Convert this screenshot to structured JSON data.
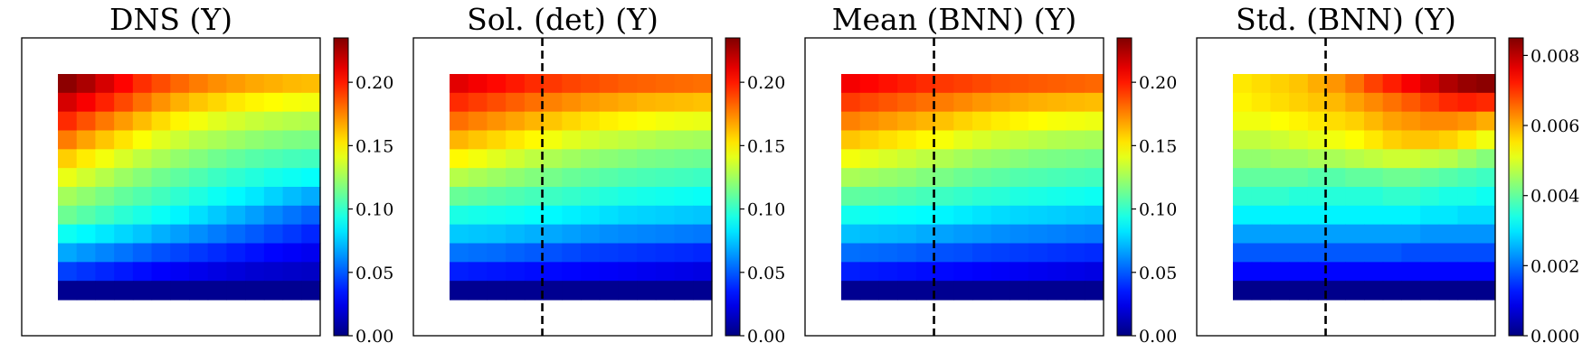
{
  "chart_data": [
    {
      "type": "heatmap",
      "title": "DNS (Y)",
      "colorbar": {
        "min": 0.0,
        "max": 0.235,
        "ticks": [
          "0.00",
          "0.05",
          "0.10",
          "0.15",
          "0.20"
        ],
        "tick_values": [
          0.0,
          0.05,
          0.1,
          0.15,
          0.2
        ],
        "colormap": "jet"
      },
      "dashed_line": false,
      "grid": {
        "rows": 12,
        "cols": 14
      },
      "rows": [
        [
          0.232,
          0.225,
          0.215,
          0.205,
          0.195,
          0.188,
          0.182,
          0.177,
          0.173,
          0.17,
          0.167,
          0.165,
          0.163,
          0.162
        ],
        [
          0.215,
          0.207,
          0.198,
          0.189,
          0.18,
          0.172,
          0.165,
          0.16,
          0.156,
          0.152,
          0.149,
          0.147,
          0.145,
          0.144
        ],
        [
          0.196,
          0.187,
          0.178,
          0.17,
          0.162,
          0.155,
          0.149,
          0.144,
          0.14,
          0.137,
          0.134,
          0.132,
          0.13,
          0.129
        ],
        [
          0.177,
          0.168,
          0.16,
          0.153,
          0.146,
          0.14,
          0.135,
          0.13,
          0.127,
          0.124,
          0.121,
          0.119,
          0.117,
          0.116
        ],
        [
          0.158,
          0.151,
          0.144,
          0.138,
          0.132,
          0.127,
          0.122,
          0.118,
          0.114,
          0.111,
          0.108,
          0.106,
          0.104,
          0.103
        ],
        [
          0.142,
          0.136,
          0.13,
          0.124,
          0.119,
          0.114,
          0.11,
          0.106,
          0.102,
          0.099,
          0.096,
          0.093,
          0.091,
          0.089
        ],
        [
          0.126,
          0.121,
          0.116,
          0.111,
          0.107,
          0.103,
          0.099,
          0.095,
          0.091,
          0.087,
          0.083,
          0.078,
          0.073,
          0.069
        ],
        [
          0.113,
          0.108,
          0.103,
          0.098,
          0.094,
          0.09,
          0.086,
          0.081,
          0.076,
          0.071,
          0.066,
          0.061,
          0.056,
          0.052
        ],
        [
          0.091,
          0.087,
          0.083,
          0.079,
          0.075,
          0.07,
          0.066,
          0.062,
          0.058,
          0.054,
          0.05,
          0.046,
          0.042,
          0.038
        ],
        [
          0.068,
          0.064,
          0.06,
          0.056,
          0.052,
          0.048,
          0.045,
          0.042,
          0.039,
          0.036,
          0.033,
          0.03,
          0.028,
          0.026
        ],
        [
          0.044,
          0.041,
          0.038,
          0.035,
          0.032,
          0.029,
          0.027,
          0.025,
          0.023,
          0.021,
          0.019,
          0.018,
          0.017,
          0.016
        ],
        [
          0.004,
          0.004,
          0.004,
          0.004,
          0.004,
          0.004,
          0.004,
          0.004,
          0.004,
          0.004,
          0.004,
          0.004,
          0.004,
          0.004
        ]
      ]
    },
    {
      "type": "heatmap",
      "title": "Sol. (det) (Y)",
      "colorbar": {
        "min": 0.0,
        "max": 0.235,
        "ticks": [
          "0.00",
          "0.05",
          "0.10",
          "0.15",
          "0.20"
        ],
        "tick_values": [
          0.0,
          0.05,
          0.1,
          0.15,
          0.2
        ],
        "colormap": "jet"
      },
      "dashed_line": true,
      "grid": {
        "rows": 12,
        "cols": 14
      },
      "rows": [
        [
          0.212,
          0.208,
          0.204,
          0.2,
          0.196,
          0.193,
          0.19,
          0.188,
          0.186,
          0.184,
          0.183,
          0.182,
          0.181,
          0.18
        ],
        [
          0.196,
          0.192,
          0.188,
          0.184,
          0.18,
          0.176,
          0.173,
          0.17,
          0.168,
          0.166,
          0.164,
          0.163,
          0.162,
          0.161
        ],
        [
          0.18,
          0.176,
          0.172,
          0.168,
          0.164,
          0.16,
          0.156,
          0.153,
          0.15,
          0.148,
          0.146,
          0.144,
          0.143,
          0.142
        ],
        [
          0.164,
          0.16,
          0.156,
          0.152,
          0.148,
          0.144,
          0.14,
          0.137,
          0.134,
          0.132,
          0.13,
          0.128,
          0.127,
          0.126
        ],
        [
          0.148,
          0.144,
          0.14,
          0.136,
          0.132,
          0.128,
          0.125,
          0.122,
          0.12,
          0.118,
          0.116,
          0.115,
          0.114,
          0.113
        ],
        [
          0.13,
          0.127,
          0.124,
          0.121,
          0.118,
          0.115,
          0.112,
          0.11,
          0.108,
          0.106,
          0.105,
          0.104,
          0.103,
          0.102
        ],
        [
          0.112,
          0.11,
          0.108,
          0.106,
          0.104,
          0.102,
          0.1,
          0.098,
          0.096,
          0.094,
          0.093,
          0.092,
          0.091,
          0.09
        ],
        [
          0.094,
          0.093,
          0.092,
          0.091,
          0.089,
          0.087,
          0.085,
          0.083,
          0.081,
          0.079,
          0.078,
          0.077,
          0.076,
          0.075
        ],
        [
          0.076,
          0.075,
          0.074,
          0.072,
          0.07,
          0.068,
          0.066,
          0.064,
          0.062,
          0.061,
          0.06,
          0.059,
          0.058,
          0.057
        ],
        [
          0.056,
          0.055,
          0.054,
          0.052,
          0.05,
          0.048,
          0.046,
          0.044,
          0.043,
          0.042,
          0.041,
          0.04,
          0.039,
          0.038
        ],
        [
          0.036,
          0.035,
          0.034,
          0.033,
          0.032,
          0.031,
          0.03,
          0.029,
          0.028,
          0.027,
          0.026,
          0.025,
          0.024,
          0.023
        ],
        [
          0.004,
          0.004,
          0.004,
          0.004,
          0.004,
          0.004,
          0.004,
          0.004,
          0.004,
          0.004,
          0.004,
          0.004,
          0.004,
          0.004
        ]
      ]
    },
    {
      "type": "heatmap",
      "title": "Mean (BNN) (Y)",
      "colorbar": {
        "min": 0.0,
        "max": 0.235,
        "ticks": [
          "0.00",
          "0.05",
          "0.10",
          "0.15",
          "0.20"
        ],
        "tick_values": [
          0.0,
          0.05,
          0.1,
          0.15,
          0.2
        ],
        "colormap": "jet"
      },
      "dashed_line": true,
      "grid": {
        "rows": 12,
        "cols": 14
      },
      "rows": [
        [
          0.208,
          0.205,
          0.202,
          0.199,
          0.196,
          0.193,
          0.191,
          0.189,
          0.187,
          0.186,
          0.185,
          0.184,
          0.183,
          0.182
        ],
        [
          0.192,
          0.189,
          0.186,
          0.183,
          0.18,
          0.177,
          0.174,
          0.171,
          0.169,
          0.167,
          0.165,
          0.164,
          0.163,
          0.162
        ],
        [
          0.176,
          0.173,
          0.17,
          0.167,
          0.164,
          0.161,
          0.157,
          0.154,
          0.151,
          0.149,
          0.147,
          0.145,
          0.144,
          0.143
        ],
        [
          0.16,
          0.157,
          0.154,
          0.151,
          0.148,
          0.145,
          0.141,
          0.138,
          0.135,
          0.133,
          0.131,
          0.129,
          0.128,
          0.127
        ],
        [
          0.144,
          0.141,
          0.138,
          0.135,
          0.132,
          0.129,
          0.126,
          0.123,
          0.121,
          0.119,
          0.117,
          0.116,
          0.115,
          0.114
        ],
        [
          0.127,
          0.125,
          0.123,
          0.121,
          0.118,
          0.116,
          0.113,
          0.111,
          0.109,
          0.107,
          0.106,
          0.105,
          0.104,
          0.103
        ],
        [
          0.11,
          0.109,
          0.108,
          0.106,
          0.104,
          0.102,
          0.1,
          0.098,
          0.097,
          0.095,
          0.094,
          0.093,
          0.092,
          0.091
        ],
        [
          0.092,
          0.091,
          0.09,
          0.089,
          0.088,
          0.086,
          0.084,
          0.082,
          0.08,
          0.079,
          0.078,
          0.077,
          0.076,
          0.075
        ],
        [
          0.074,
          0.073,
          0.072,
          0.071,
          0.069,
          0.067,
          0.065,
          0.064,
          0.062,
          0.061,
          0.06,
          0.059,
          0.058,
          0.057
        ],
        [
          0.055,
          0.054,
          0.053,
          0.052,
          0.05,
          0.048,
          0.047,
          0.045,
          0.044,
          0.043,
          0.042,
          0.041,
          0.04,
          0.039
        ],
        [
          0.036,
          0.035,
          0.034,
          0.033,
          0.032,
          0.031,
          0.03,
          0.029,
          0.028,
          0.027,
          0.026,
          0.025,
          0.024,
          0.023
        ],
        [
          0.004,
          0.004,
          0.004,
          0.004,
          0.004,
          0.004,
          0.004,
          0.004,
          0.004,
          0.004,
          0.004,
          0.004,
          0.004,
          0.004
        ]
      ]
    },
    {
      "type": "heatmap",
      "title": "Std. (BNN) (Y)",
      "colorbar": {
        "min": 0.0,
        "max": 0.0085,
        "ticks": [
          "0.000",
          "0.002",
          "0.004",
          "0.006",
          "0.008"
        ],
        "tick_values": [
          0.0,
          0.002,
          0.004,
          0.006,
          0.008
        ],
        "colormap": "jet"
      },
      "dashed_line": true,
      "grid": {
        "rows": 12,
        "cols": 14
      },
      "rows": [
        [
          0.0055,
          0.0056,
          0.0057,
          0.0058,
          0.006,
          0.0062,
          0.0065,
          0.0069,
          0.0072,
          0.0075,
          0.0078,
          0.0081,
          0.0083,
          0.0084
        ],
        [
          0.0054,
          0.0055,
          0.0056,
          0.0057,
          0.0058,
          0.0059,
          0.0061,
          0.0063,
          0.0065,
          0.0067,
          0.0069,
          0.0071,
          0.0072,
          0.0071
        ],
        [
          0.0052,
          0.0052,
          0.0053,
          0.0054,
          0.0055,
          0.0056,
          0.0057,
          0.0059,
          0.0061,
          0.0062,
          0.0063,
          0.0063,
          0.0062,
          0.006
        ],
        [
          0.0048,
          0.0048,
          0.0049,
          0.005,
          0.0051,
          0.0052,
          0.0053,
          0.0055,
          0.0057,
          0.0058,
          0.0058,
          0.0057,
          0.0055,
          0.0052
        ],
        [
          0.0044,
          0.0044,
          0.0045,
          0.0045,
          0.0046,
          0.0046,
          0.0047,
          0.0048,
          0.0049,
          0.0049,
          0.0048,
          0.0047,
          0.0045,
          0.0043
        ],
        [
          0.004,
          0.004,
          0.004,
          0.004,
          0.0039,
          0.0039,
          0.004,
          0.004,
          0.0041,
          0.0041,
          0.004,
          0.0039,
          0.0038,
          0.0037
        ],
        [
          0.0036,
          0.0036,
          0.0036,
          0.0035,
          0.0035,
          0.0035,
          0.0035,
          0.0035,
          0.0036,
          0.0036,
          0.0035,
          0.0034,
          0.0034,
          0.0033
        ],
        [
          0.0031,
          0.0031,
          0.0031,
          0.0031,
          0.0031,
          0.0031,
          0.0031,
          0.0031,
          0.0031,
          0.0031,
          0.003,
          0.003,
          0.0029,
          0.0029
        ],
        [
          0.0024,
          0.0024,
          0.0024,
          0.0024,
          0.0024,
          0.0024,
          0.0024,
          0.0024,
          0.0024,
          0.0024,
          0.0023,
          0.0023,
          0.0023,
          0.0023
        ],
        [
          0.0018,
          0.0018,
          0.0018,
          0.0018,
          0.0018,
          0.0018,
          0.0018,
          0.0018,
          0.0018,
          0.0017,
          0.0017,
          0.0017,
          0.0017,
          0.0017
        ],
        [
          0.0011,
          0.0011,
          0.0011,
          0.0011,
          0.0011,
          0.0011,
          0.0011,
          0.0011,
          0.0011,
          0.0011,
          0.0011,
          0.0011,
          0.0011,
          0.0011
        ],
        [
          0.0001,
          0.0001,
          0.0001,
          0.0001,
          0.0001,
          0.0001,
          0.0001,
          0.0001,
          0.0001,
          0.0001,
          0.0001,
          0.0001,
          0.0001,
          0.0001
        ]
      ]
    }
  ]
}
